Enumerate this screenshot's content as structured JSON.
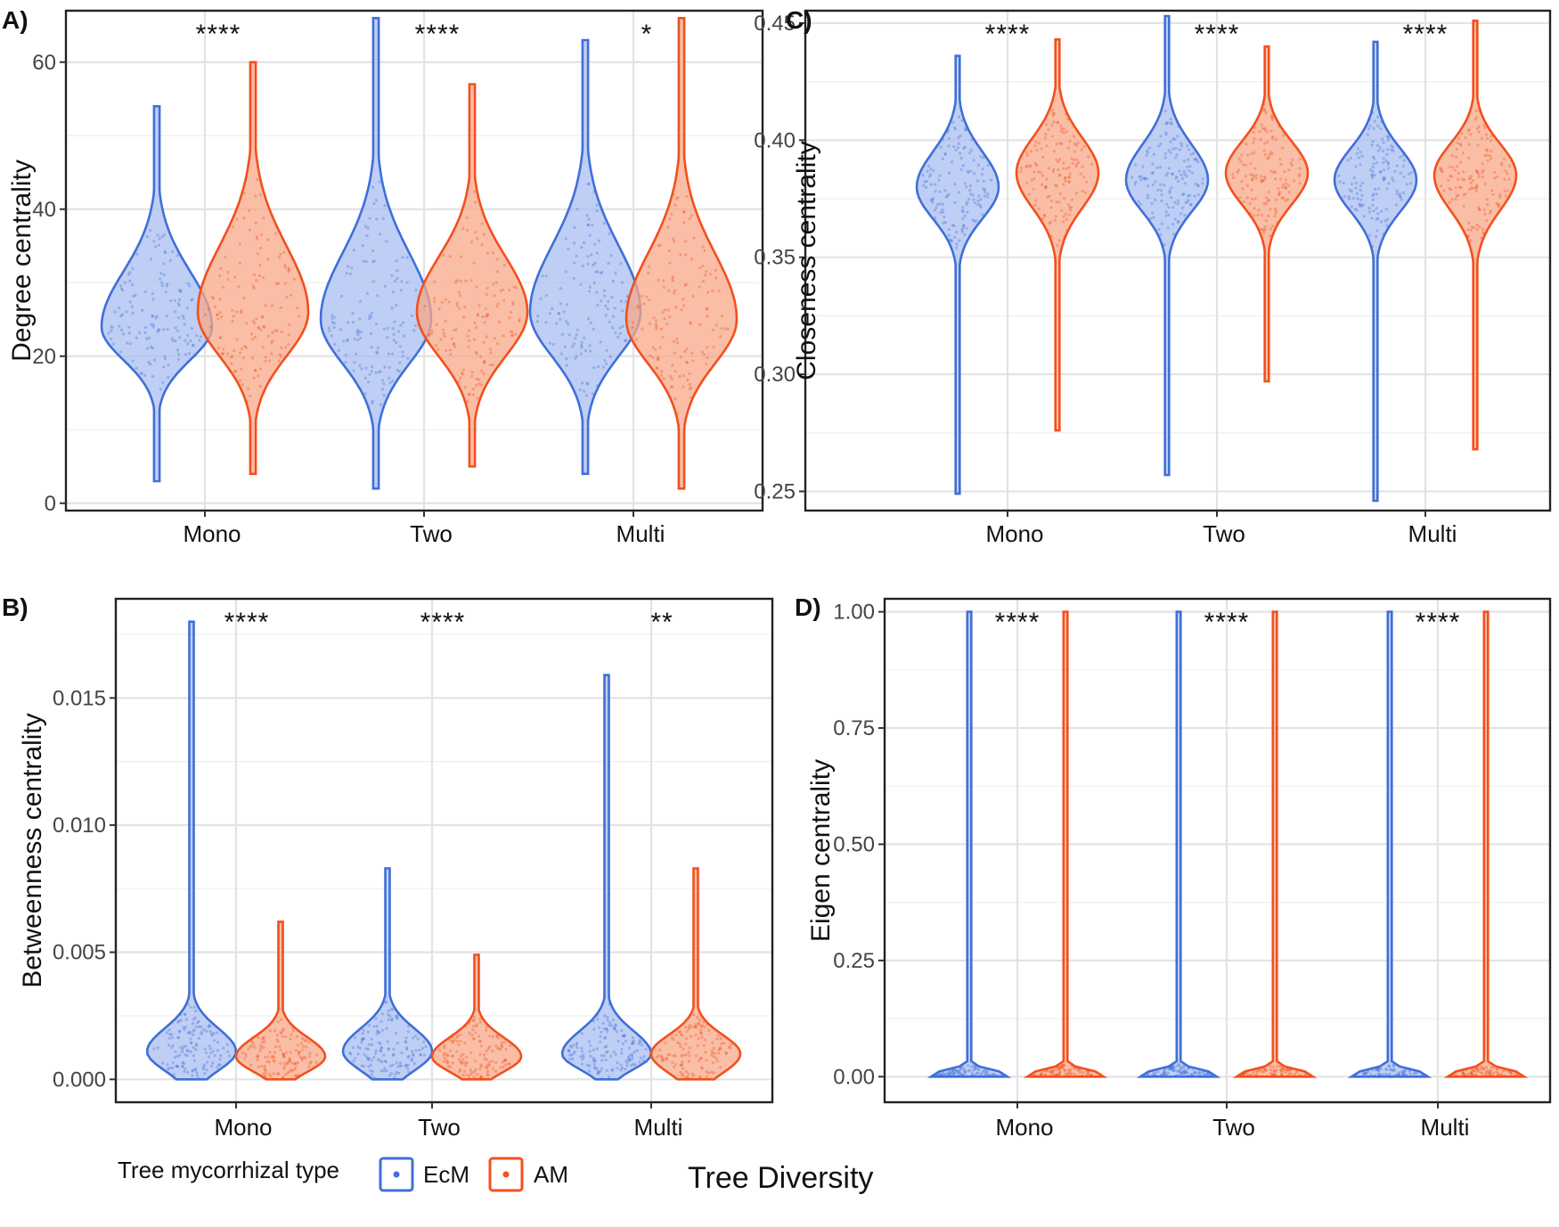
{
  "colors": {
    "EcM": "#3f6fd9",
    "AM": "#f2501e",
    "EcM_fill": "#a9bef0",
    "AM_fill": "#f8a888"
  },
  "legend": {
    "title": "Tree mycorrhizal type",
    "items": [
      {
        "name": "EcM",
        "label": "EcM"
      },
      {
        "name": "AM",
        "label": "AM"
      }
    ],
    "position": "bottom"
  },
  "shared_xlabel": "Tree Diversity",
  "chart_data": [
    {
      "type": "violin",
      "panel": "A)",
      "ylabel": "Degree centrality",
      "xlabel": "",
      "categories": [
        "Mono",
        "Two",
        "Multi"
      ],
      "ylim": [
        -1,
        67
      ],
      "yticks": [
        0,
        20,
        40,
        60
      ],
      "ytick_labels": [
        "0",
        "20",
        "40",
        "60"
      ],
      "grid": true,
      "significance": [
        "****",
        "****",
        "*"
      ],
      "series": [
        {
          "name": "EcM",
          "violins": [
            {
              "min": 3,
              "max": 54,
              "mode": 24,
              "q1": 21,
              "q3": 29,
              "spread": 1.0
            },
            {
              "min": 2,
              "max": 66,
              "mode": 25,
              "q1": 21,
              "q3": 31,
              "spread": 1.0
            },
            {
              "min": 4,
              "max": 63,
              "mode": 26,
              "q1": 22,
              "q3": 32,
              "spread": 1.0
            }
          ]
        },
        {
          "name": "AM",
          "violins": [
            {
              "min": 4,
              "max": 60,
              "mode": 26,
              "q1": 22,
              "q3": 32,
              "spread": 1.0
            },
            {
              "min": 5,
              "max": 57,
              "mode": 26,
              "q1": 22,
              "q3": 31,
              "spread": 1.0
            },
            {
              "min": 2,
              "max": 66,
              "mode": 25,
              "q1": 21,
              "q3": 31,
              "spread": 1.0
            }
          ]
        }
      ]
    },
    {
      "type": "violin",
      "panel": "B)",
      "ylabel": "Betweenness centrality",
      "xlabel": "",
      "categories": [
        "Mono",
        "Two",
        "Multi"
      ],
      "ylim": [
        -0.0009,
        0.0189
      ],
      "yticks": [
        0.0,
        0.005,
        0.01,
        0.015
      ],
      "ytick_labels": [
        "0.000",
        "0.005",
        "0.010",
        "0.015"
      ],
      "grid": true,
      "significance": [
        "****",
        "****",
        "**"
      ],
      "series": [
        {
          "name": "EcM",
          "violins": [
            {
              "min": 0.0,
              "max": 0.018,
              "mode": 0.0011,
              "q1": 0.0006,
              "q3": 0.0017,
              "spread": 1.0
            },
            {
              "min": 0.0,
              "max": 0.0083,
              "mode": 0.0011,
              "q1": 0.0006,
              "q3": 0.0017,
              "spread": 1.0
            },
            {
              "min": 0.0,
              "max": 0.0159,
              "mode": 0.001,
              "q1": 0.0006,
              "q3": 0.0016,
              "spread": 1.0
            }
          ]
        },
        {
          "name": "AM",
          "violins": [
            {
              "min": 0.0,
              "max": 0.0062,
              "mode": 0.0009,
              "q1": 0.0005,
              "q3": 0.0014,
              "spread": 1.0
            },
            {
              "min": 0.0,
              "max": 0.0049,
              "mode": 0.0009,
              "q1": 0.0005,
              "q3": 0.0014,
              "spread": 1.0
            },
            {
              "min": 0.0,
              "max": 0.0083,
              "mode": 0.001,
              "q1": 0.0005,
              "q3": 0.0015,
              "spread": 1.0
            }
          ]
        }
      ]
    },
    {
      "type": "violin",
      "panel": "C)",
      "ylabel": "Closeness centrality",
      "xlabel": "",
      "categories": [
        "Mono",
        "Two",
        "Multi"
      ],
      "ylim": [
        0.2418,
        0.4553
      ],
      "yticks": [
        0.25,
        0.3,
        0.35,
        0.4,
        0.45
      ],
      "ytick_labels": [
        "0.25",
        "0.30",
        "0.35",
        "0.40",
        "0.45"
      ],
      "grid": true,
      "significance": [
        "****",
        "****",
        "****"
      ],
      "series": [
        {
          "name": "EcM",
          "violins": [
            {
              "min": 0.249,
              "max": 0.436,
              "mode": 0.38,
              "q1": 0.371,
              "q3": 0.39,
              "spread": 1.0
            },
            {
              "min": 0.257,
              "max": 0.453,
              "mode": 0.383,
              "q1": 0.374,
              "q3": 0.393,
              "spread": 1.0
            },
            {
              "min": 0.246,
              "max": 0.442,
              "mode": 0.383,
              "q1": 0.374,
              "q3": 0.392,
              "spread": 1.0
            }
          ]
        },
        {
          "name": "AM",
          "violins": [
            {
              "min": 0.276,
              "max": 0.443,
              "mode": 0.386,
              "q1": 0.376,
              "q3": 0.396,
              "spread": 1.0
            },
            {
              "min": 0.297,
              "max": 0.44,
              "mode": 0.386,
              "q1": 0.377,
              "q3": 0.395,
              "spread": 1.0
            },
            {
              "min": 0.268,
              "max": 0.451,
              "mode": 0.385,
              "q1": 0.375,
              "q3": 0.394,
              "spread": 1.0
            }
          ]
        }
      ]
    },
    {
      "type": "violin",
      "panel": "D)",
      "ylabel": "Eigen centrality",
      "xlabel": "",
      "categories": [
        "Mono",
        "Two",
        "Multi"
      ],
      "ylim": [
        -0.055,
        1.028
      ],
      "yticks": [
        0.0,
        0.25,
        0.5,
        0.75,
        1.0
      ],
      "ytick_labels": [
        "0.00",
        "0.25",
        "0.50",
        "0.75",
        "1.00"
      ],
      "grid": true,
      "significance": [
        "****",
        "****",
        "****"
      ],
      "series": [
        {
          "name": "EcM",
          "violins": [
            {
              "min": 0.0,
              "max": 1.0,
              "mode": 0.002,
              "q1": 0.0,
              "q3": 0.01,
              "spread": 1.0
            },
            {
              "min": 0.0,
              "max": 1.0,
              "mode": 0.002,
              "q1": 0.0,
              "q3": 0.01,
              "spread": 1.0
            },
            {
              "min": 0.0,
              "max": 1.0,
              "mode": 0.002,
              "q1": 0.0,
              "q3": 0.01,
              "spread": 1.0
            }
          ]
        },
        {
          "name": "AM",
          "violins": [
            {
              "min": 0.0,
              "max": 1.0,
              "mode": 0.002,
              "q1": 0.0,
              "q3": 0.01,
              "spread": 1.0
            },
            {
              "min": 0.0,
              "max": 1.0,
              "mode": 0.002,
              "q1": 0.0,
              "q3": 0.01,
              "spread": 1.0
            },
            {
              "min": 0.0,
              "max": 1.0,
              "mode": 0.002,
              "q1": 0.0,
              "q3": 0.01,
              "spread": 1.0
            }
          ]
        }
      ]
    }
  ]
}
